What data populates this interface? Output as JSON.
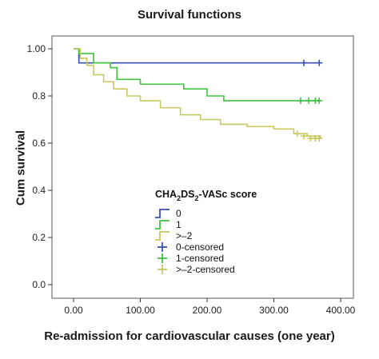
{
  "chart_data": {
    "type": "line",
    "title": "Survival functions",
    "xlabel": "Re-admission for cardiovascular causes (one year)",
    "ylabel": "Cum survival",
    "xlim": [
      0,
      400
    ],
    "ylim": [
      0,
      1
    ],
    "x_ticks": [
      "0.00",
      "100.00",
      "200.00",
      "300.00",
      "400.00"
    ],
    "y_ticks": [
      "0.0",
      "0.2",
      "0.4",
      "0.6",
      "0.8",
      "1.00"
    ],
    "legend": {
      "title_main": "CHA",
      "title_sub1": "2",
      "title_mid": "DS",
      "title_sub2": "2",
      "title_end": "-VASc score",
      "entries": [
        "0",
        "1",
        ">–2",
        "0-censored",
        "1-censored",
        ">–2-censored"
      ]
    },
    "colors": {
      "s0": "#3b4fb8",
      "s1": "#3fc43f",
      "s2": "#c8c860"
    },
    "series": [
      {
        "name": "0",
        "step": [
          [
            0,
            1.0
          ],
          [
            8,
            0.94
          ],
          [
            370,
            0.94
          ]
        ],
        "censored": [
          [
            345,
            0.94
          ],
          [
            368,
            0.94
          ]
        ]
      },
      {
        "name": "1",
        "step": [
          [
            0,
            1.0
          ],
          [
            8,
            0.98
          ],
          [
            30,
            0.94
          ],
          [
            55,
            0.92
          ],
          [
            65,
            0.87
          ],
          [
            100,
            0.85
          ],
          [
            165,
            0.83
          ],
          [
            200,
            0.8
          ],
          [
            225,
            0.78
          ],
          [
            370,
            0.78
          ]
        ],
        "censored": [
          [
            340,
            0.78
          ],
          [
            352,
            0.78
          ],
          [
            362,
            0.78
          ],
          [
            368,
            0.78
          ]
        ]
      },
      {
        "name": ">–2",
        "step": [
          [
            0,
            1.0
          ],
          [
            10,
            0.96
          ],
          [
            20,
            0.93
          ],
          [
            30,
            0.89
          ],
          [
            45,
            0.86
          ],
          [
            60,
            0.83
          ],
          [
            80,
            0.8
          ],
          [
            100,
            0.78
          ],
          [
            130,
            0.75
          ],
          [
            160,
            0.72
          ],
          [
            190,
            0.7
          ],
          [
            220,
            0.68
          ],
          [
            260,
            0.67
          ],
          [
            300,
            0.66
          ],
          [
            330,
            0.64
          ],
          [
            350,
            0.63
          ],
          [
            370,
            0.62
          ]
        ],
        "censored": [
          [
            335,
            0.64
          ],
          [
            345,
            0.63
          ],
          [
            355,
            0.62
          ],
          [
            362,
            0.62
          ],
          [
            368,
            0.62
          ]
        ]
      }
    ]
  }
}
